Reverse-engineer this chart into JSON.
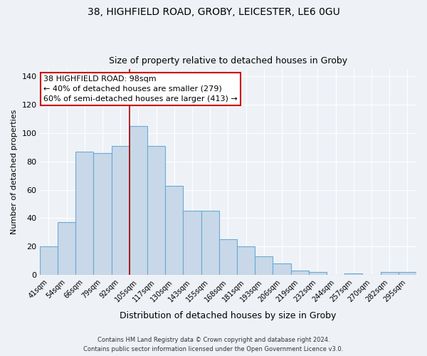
{
  "title1": "38, HIGHFIELD ROAD, GROBY, LEICESTER, LE6 0GU",
  "title2": "Size of property relative to detached houses in Groby",
  "xlabel": "Distribution of detached houses by size in Groby",
  "ylabel": "Number of detached properties",
  "bin_labels": [
    "41sqm",
    "54sqm",
    "66sqm",
    "79sqm",
    "92sqm",
    "105sqm",
    "117sqm",
    "130sqm",
    "143sqm",
    "155sqm",
    "168sqm",
    "181sqm",
    "193sqm",
    "206sqm",
    "219sqm",
    "232sqm",
    "244sqm",
    "257sqm",
    "270sqm",
    "282sqm",
    "295sqm"
  ],
  "bar_heights": [
    20,
    37,
    87,
    86,
    91,
    105,
    91,
    63,
    45,
    45,
    25,
    20,
    13,
    8,
    3,
    2,
    0,
    1,
    0,
    2,
    2
  ],
  "bar_color": "#c8d8e8",
  "bar_edge_color": "#6aaad4",
  "vline_color": "#aa0000",
  "annotation_line1": "38 HIGHFIELD ROAD: 98sqm",
  "annotation_line2": "← 40% of detached houses are smaller (279)",
  "annotation_line3": "60% of semi-detached houses are larger (413) →",
  "annotation_box_color": "#cc0000",
  "ylim": [
    0,
    145
  ],
  "yticks": [
    0,
    20,
    40,
    60,
    80,
    100,
    120,
    140
  ],
  "footer1": "Contains HM Land Registry data © Crown copyright and database right 2024.",
  "footer2": "Contains public sector information licensed under the Open Government Licence v3.0.",
  "bg_color": "#eef2f7",
  "plot_bg_color": "#eef2f7",
  "grid_color": "#ffffff"
}
